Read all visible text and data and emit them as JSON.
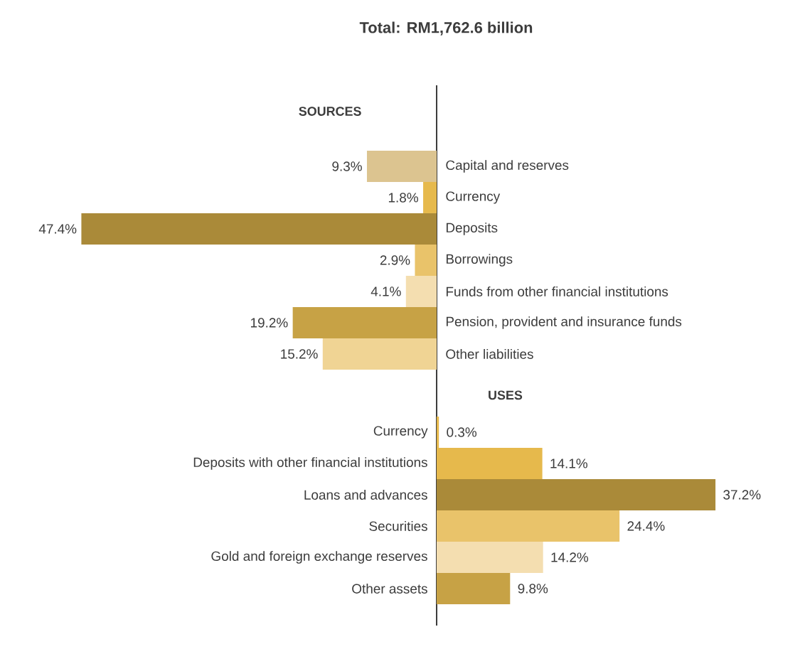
{
  "chart_data": [
    {
      "type": "bar",
      "orientation": "horizontal",
      "title": "Total: RM1,762.6 billion",
      "subtitle": "SOURCES",
      "xlim": [
        47.4,
        0
      ],
      "categories": [
        "Capital and reserves",
        "Currency",
        "Deposits",
        "Borrowings",
        "Funds from other financial institutions",
        "Pension, provident and insurance funds",
        "Other liabilities"
      ],
      "values": [
        9.3,
        1.8,
        47.4,
        2.9,
        4.1,
        19.2,
        15.2
      ],
      "value_labels": [
        "9.3%",
        "1.8%",
        "47.4%",
        "2.9%",
        "4.1%",
        "19.2%",
        "15.2%"
      ],
      "colors": [
        "#dcc490",
        "#e6b94c",
        "#aa8a39",
        "#e9c36a",
        "#f4deb0",
        "#c7a245",
        "#f0d494"
      ]
    },
    {
      "type": "bar",
      "orientation": "horizontal",
      "title": "USES",
      "xlim": [
        0,
        37.2
      ],
      "categories": [
        "Currency",
        "Deposits with other financial institutions",
        "Loans and advances",
        "Securities",
        "Gold and foreign exchange reserves",
        "Other assets"
      ],
      "values": [
        0.3,
        14.1,
        37.2,
        24.4,
        14.2,
        9.8
      ],
      "value_labels": [
        "0.3%",
        "14.1%",
        "37.2%",
        "24.4%",
        "14.2%",
        "9.8%"
      ],
      "colors": [
        "#e6b94c",
        "#e6b94c",
        "#aa8a39",
        "#e9c36a",
        "#f4deb0",
        "#c7a245"
      ]
    }
  ]
}
